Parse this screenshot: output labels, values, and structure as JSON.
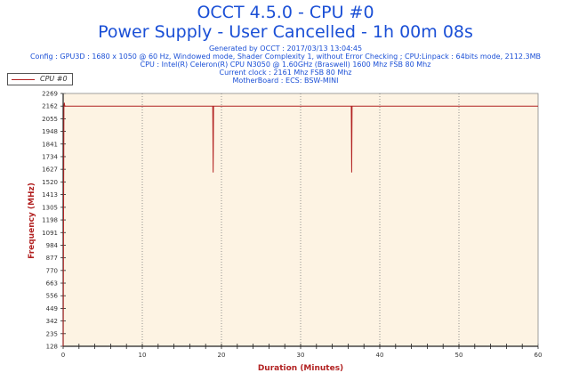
{
  "header": {
    "title_line1": "OCCT 4.5.0 - CPU #0",
    "title_line2": "Power Supply - User Cancelled - 1h 00m 08s",
    "info_lines": [
      "Generated by OCCT : 2017/03/13 13:04:45",
      "Config : GPU3D : 1680 x 1050 @ 60 Hz, Windowed mode, Shader Complexity 1, without Error Checking ; CPU:Linpack : 64bits mode, 2112.3MB",
      "CPU : Intel(R) Celeron(R) CPU N3050 @ 1.60GHz (Braswell) 1600 Mhz FSB 80 Mhz",
      "Current clock : 2161 Mhz FSB 80 Mhz",
      "MotherBoard : ECS: BSW-MINI"
    ]
  },
  "colors": {
    "title": "#1a4fd6",
    "plot_background": "#fdf3e3",
    "series": "#b22222",
    "axis_title": "#b22222"
  },
  "chart_data": {
    "type": "line",
    "xlabel": "Duration (Minutes)",
    "ylabel": "Frequency (MHz)",
    "xlim": [
      0,
      60
    ],
    "ylim": [
      128,
      2269
    ],
    "x_ticks": [
      0,
      10,
      20,
      30,
      40,
      50,
      60
    ],
    "y_ticks": [
      128,
      235,
      342,
      449,
      556,
      663,
      770,
      877,
      984,
      1091,
      1198,
      1305,
      1413,
      1520,
      1627,
      1734,
      1841,
      1948,
      2055,
      2162,
      2269
    ],
    "grid": true,
    "grid_style": "dotted",
    "legend": "top-left",
    "series": [
      {
        "name": "CPU #0",
        "x": [
          0,
          0.1,
          0.15,
          0.2,
          0.3,
          0.4,
          18.9,
          18.95,
          19.0,
          36.4,
          36.45,
          36.5,
          60
        ],
        "y": [
          128,
          2162,
          2190,
          2162,
          2162,
          2162,
          2162,
          1600,
          2162,
          2162,
          1600,
          2162,
          2162
        ]
      }
    ]
  }
}
